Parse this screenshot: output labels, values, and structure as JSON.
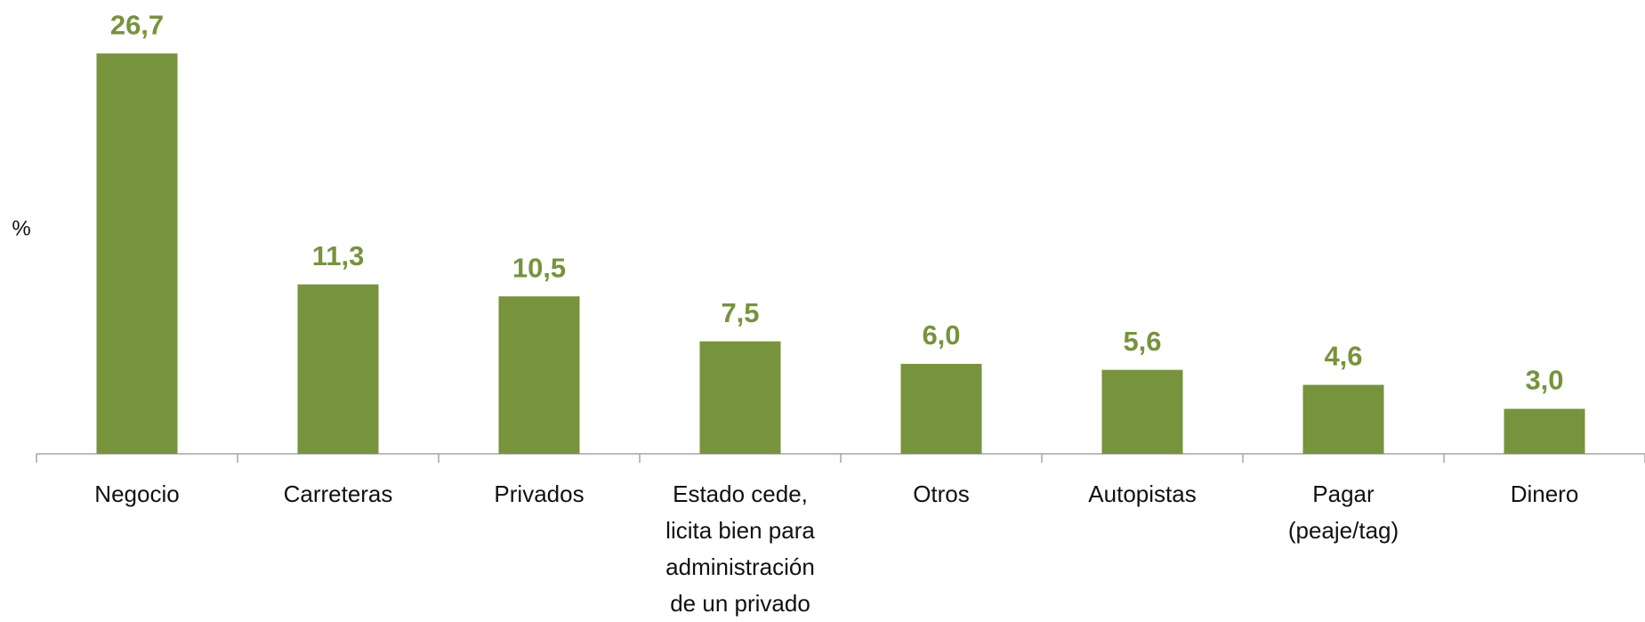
{
  "chart_data": {
    "type": "bar",
    "y_label": "%",
    "categories": [
      "Negocio",
      "Carreteras",
      "Privados",
      "Estado cede, licita bien para administración de un privado",
      "Otros",
      "Autopistas",
      "Pagar (peaje/tag)",
      "Dinero"
    ],
    "values": [
      26.7,
      11.3,
      10.5,
      7.5,
      6.0,
      5.6,
      4.6,
      3.0
    ],
    "value_labels": [
      "26,7",
      "11,3",
      "10,5",
      "7,5",
      "6,0",
      "5,6",
      "4,6",
      "3,0"
    ],
    "color": "#77933c"
  }
}
